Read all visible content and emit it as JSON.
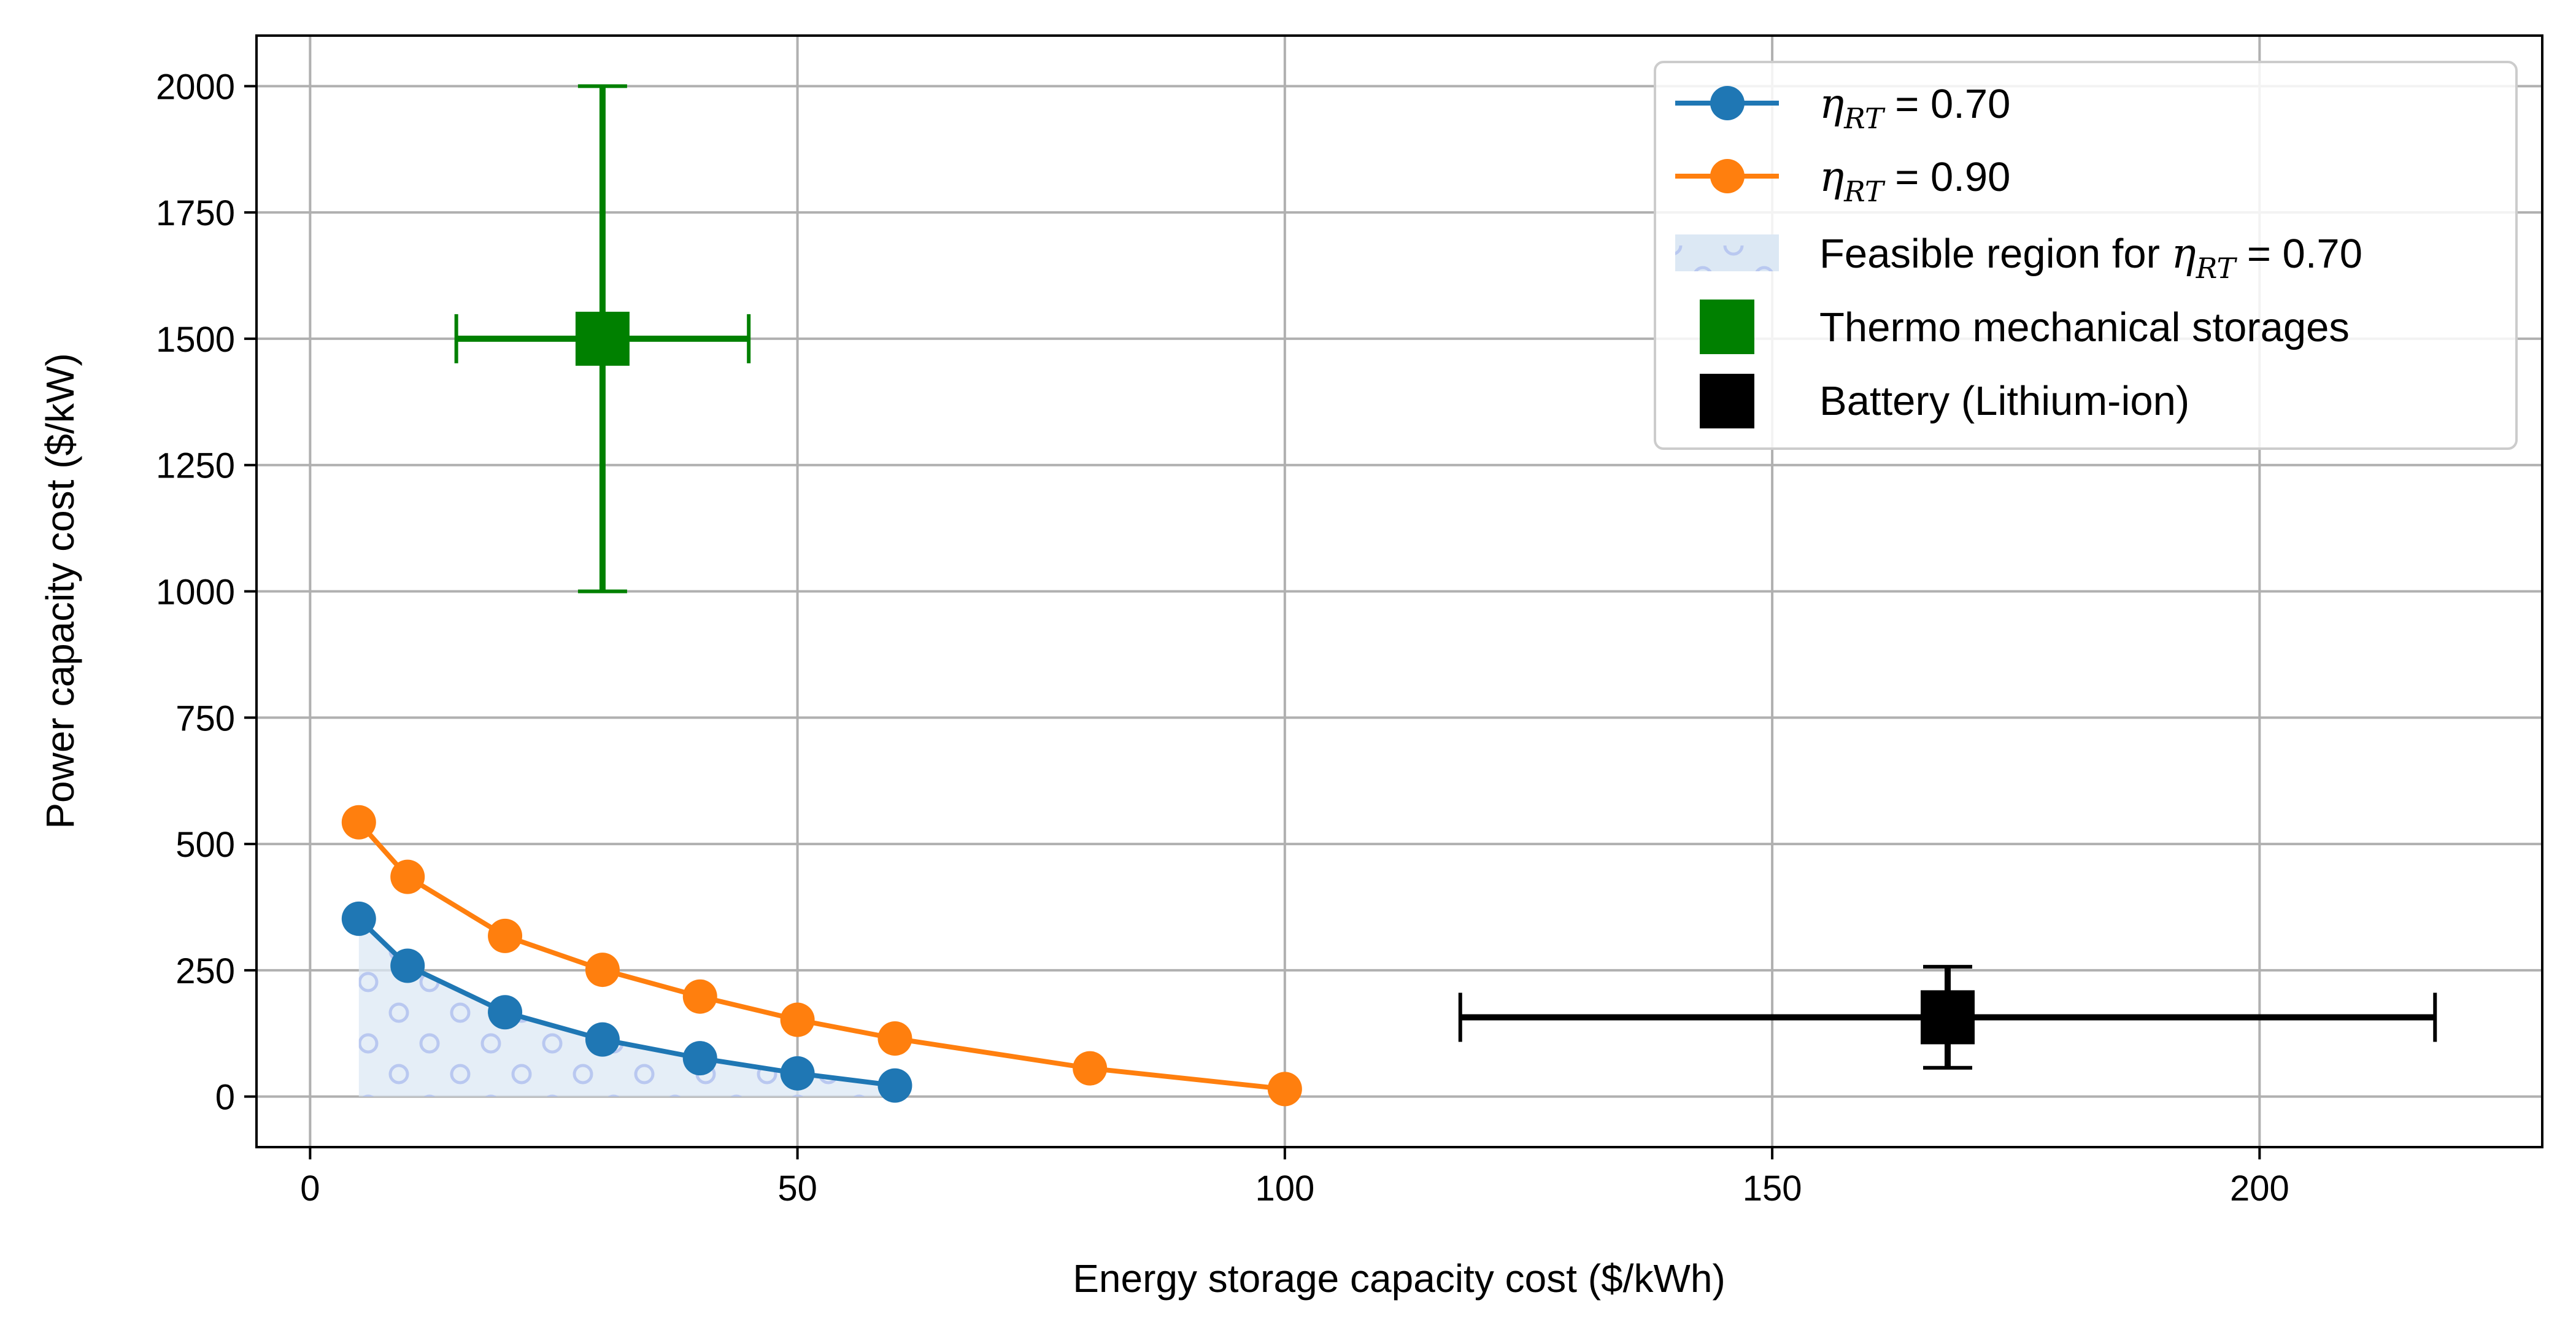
{
  "chart_data": {
    "type": "line",
    "title": "",
    "xlabel": "Energy storage capacity cost ($/kWh)",
    "ylabel": "Power capacity cost ($/kW)",
    "xlim": [
      -5.5,
      229
    ],
    "ylim": [
      -100,
      2100
    ],
    "xticks": [
      0,
      50,
      100,
      150,
      200
    ],
    "yticks": [
      0,
      250,
      500,
      750,
      1000,
      1250,
      1500,
      1750,
      2000
    ],
    "grid": true,
    "legend_position": "top-right",
    "series": [
      {
        "name": "η_RT =  0.70",
        "legend_symbol": "η",
        "legend_sub": "RT",
        "legend_suffix": " =  0.70",
        "color": "#1f77b4",
        "x": [
          5,
          10,
          20,
          30,
          40,
          50,
          60
        ],
        "y": [
          352,
          259,
          167,
          113,
          76,
          46,
          22
        ]
      },
      {
        "name": "η_RT =  0.90",
        "legend_symbol": "η",
        "legend_sub": "RT",
        "legend_suffix": " =  0.90",
        "color": "#ff7f0e",
        "x": [
          5,
          10,
          20,
          30,
          40,
          50,
          60,
          80,
          100
        ],
        "y": [
          543,
          435,
          318,
          251,
          198,
          152,
          115,
          56,
          15
        ]
      }
    ],
    "feasible_region": {
      "name": "Feasible region for η_RT = 0.70",
      "legend_prefix": "Feasible region for ",
      "legend_symbol": "η",
      "legend_sub": "RT",
      "legend_suffix": " = 0.70",
      "color": "#dce8f4",
      "hatch_color": "#b9c8f0",
      "based_on_series": 0
    },
    "points": [
      {
        "name": "Thermo mechanical storages",
        "color": "#008000",
        "x": 30,
        "y": 1500,
        "x_err": [
          15,
          45
        ],
        "y_err": [
          1000,
          2000
        ]
      },
      {
        "name": "Battery (Lithium-ion)",
        "color": "#000000",
        "x": 168,
        "y": 157,
        "x_err": [
          118,
          218
        ],
        "y_err": [
          57,
          257
        ]
      }
    ]
  }
}
